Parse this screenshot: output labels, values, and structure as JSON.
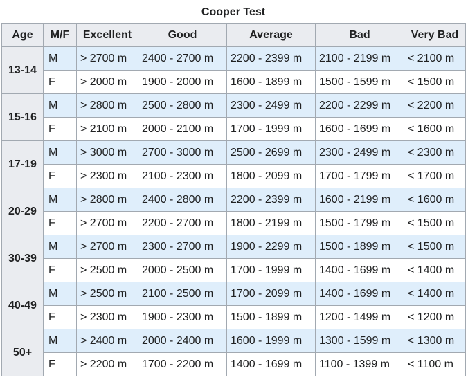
{
  "caption": "Cooper Test",
  "headers": [
    "Age",
    "M/F",
    "Excellent",
    "Good",
    "Average",
    "Bad",
    "Very Bad"
  ],
  "colors": {
    "header_bg": "#eaecf0",
    "male_row_bg": "#dfeefb",
    "female_row_bg": "#ffffff",
    "border": "#a2a9b1"
  },
  "groups": [
    {
      "age": "13-14",
      "rows": [
        {
          "sex": "M",
          "excellent": "> 2700 m",
          "good": "2400 - 2700 m",
          "average": "2200 - 2399 m",
          "bad": "2100 - 2199 m",
          "very_bad": "< 2100 m"
        },
        {
          "sex": "F",
          "excellent": "> 2000 m",
          "good": "1900 - 2000 m",
          "average": "1600 - 1899 m",
          "bad": "1500 - 1599 m",
          "very_bad": "< 1500 m"
        }
      ]
    },
    {
      "age": "15-16",
      "rows": [
        {
          "sex": "M",
          "excellent": "> 2800 m",
          "good": "2500 - 2800 m",
          "average": "2300 - 2499 m",
          "bad": "2200 - 2299 m",
          "very_bad": "< 2200 m"
        },
        {
          "sex": "F",
          "excellent": "> 2100 m",
          "good": "2000 - 2100 m",
          "average": "1700 - 1999 m",
          "bad": "1600 - 1699 m",
          "very_bad": "< 1600 m"
        }
      ]
    },
    {
      "age": "17-19",
      "rows": [
        {
          "sex": "M",
          "excellent": "> 3000 m",
          "good": "2700 - 3000 m",
          "average": "2500 - 2699 m",
          "bad": "2300 - 2499 m",
          "very_bad": "< 2300 m"
        },
        {
          "sex": "F",
          "excellent": "> 2300 m",
          "good": "2100 - 2300 m",
          "average": "1800 - 2099 m",
          "bad": "1700 - 1799 m",
          "very_bad": "< 1700 m"
        }
      ]
    },
    {
      "age": "20-29",
      "rows": [
        {
          "sex": "M",
          "excellent": "> 2800 m",
          "good": "2400 - 2800 m",
          "average": "2200 - 2399 m",
          "bad": "1600 - 2199 m",
          "very_bad": "< 1600 m"
        },
        {
          "sex": "F",
          "excellent": "> 2700 m",
          "good": "2200 - 2700 m",
          "average": "1800 - 2199 m",
          "bad": "1500 - 1799 m",
          "very_bad": "< 1500 m"
        }
      ]
    },
    {
      "age": "30-39",
      "rows": [
        {
          "sex": "M",
          "excellent": "> 2700 m",
          "good": "2300 - 2700 m",
          "average": "1900 - 2299 m",
          "bad": "1500 - 1899 m",
          "very_bad": "< 1500 m"
        },
        {
          "sex": "F",
          "excellent": "> 2500 m",
          "good": "2000 - 2500 m",
          "average": "1700 - 1999 m",
          "bad": "1400 - 1699 m",
          "very_bad": "< 1400 m"
        }
      ]
    },
    {
      "age": "40-49",
      "rows": [
        {
          "sex": "M",
          "excellent": "> 2500 m",
          "good": "2100 - 2500 m",
          "average": "1700 - 2099 m",
          "bad": "1400 - 1699 m",
          "very_bad": "< 1400 m"
        },
        {
          "sex": "F",
          "excellent": "> 2300 m",
          "good": "1900 - 2300 m",
          "average": "1500 - 1899 m",
          "bad": "1200 - 1499 m",
          "very_bad": "< 1200 m"
        }
      ]
    },
    {
      "age": "50+",
      "rows": [
        {
          "sex": "M",
          "excellent": "> 2400 m",
          "good": "2000 - 2400 m",
          "average": "1600 - 1999 m",
          "bad": "1300 - 1599 m",
          "very_bad": "< 1300 m"
        },
        {
          "sex": "F",
          "excellent": "> 2200 m",
          "good": "1700 - 2200 m",
          "average": "1400 - 1699 m",
          "bad": "1100 - 1399 m",
          "very_bad": "< 1100 m"
        }
      ]
    }
  ]
}
